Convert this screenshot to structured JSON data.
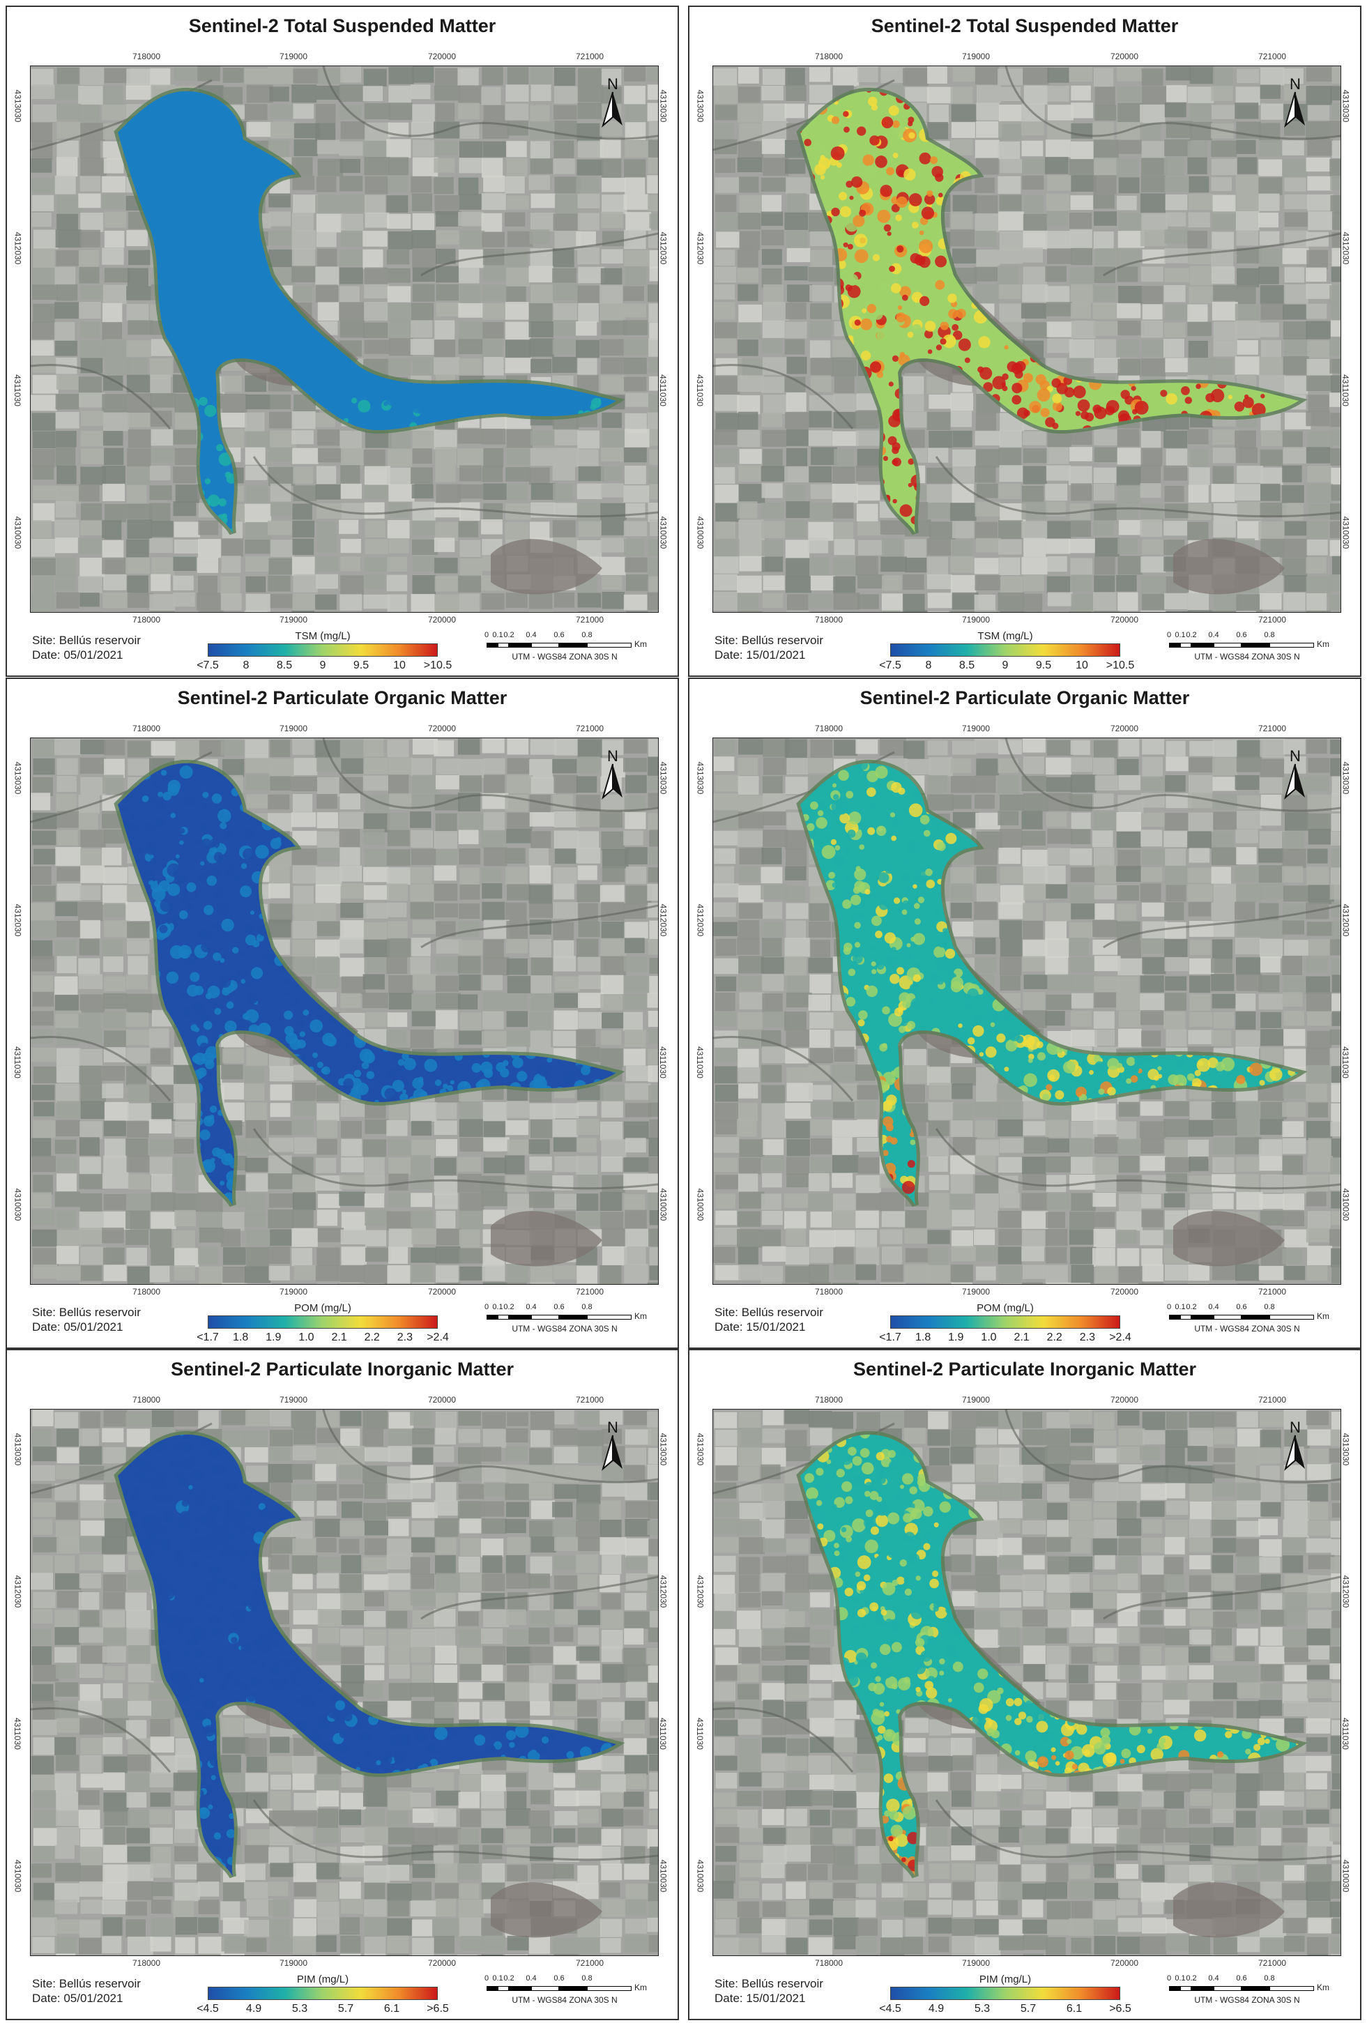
{
  "panels": [
    {
      "title": "Sentinel-2 Total Suspended Matter",
      "site": "Site: Bellús reservoir",
      "date": "Date: 05/01/2021",
      "legend_title": "TSM (mg/L)",
      "legend_ticks": [
        "<7.5",
        "8",
        "8.5",
        "9",
        "9.5",
        "10",
        ">10.5"
      ],
      "level": 0.15
    },
    {
      "title": "Sentinel-2 Total Suspended Matter",
      "site": "Site: Bellús reservoir",
      "date": "Date: 15/01/2021",
      "legend_title": "TSM (mg/L)",
      "legend_ticks": [
        "<7.5",
        "8",
        "8.5",
        "9",
        "9.5",
        "10",
        ">10.5"
      ],
      "level": 0.82
    },
    {
      "title": "Sentinel-2 Particulate Organic Matter",
      "site": "Site: Bellús reservoir",
      "date": "Date: 05/01/2021",
      "legend_title": "POM (mg/L)",
      "legend_ticks": [
        "<1.7",
        "1.8",
        "1.9",
        "1.0",
        "2.1",
        "2.2",
        "2.3",
        ">2.4"
      ],
      "level": 0.08
    },
    {
      "title": "Sentinel-2 Particulate Organic Matter",
      "site": "Site: Bellús reservoir",
      "date": "Date: 15/01/2021",
      "legend_title": "POM (mg/L)",
      "legend_ticks": [
        "<1.7",
        "1.8",
        "1.9",
        "1.0",
        "2.1",
        "2.2",
        "2.3",
        ">2.4"
      ],
      "level": 0.45
    },
    {
      "title": "Sentinel-2 Particulate Inorganic Matter",
      "site": "Site: Bellús reservoir",
      "date": "Date: 05/01/2021",
      "legend_title": "PIM (mg/L)",
      "legend_ticks": [
        "<4.5",
        "4.9",
        "5.3",
        "5.7",
        "6.1",
        ">6.5"
      ],
      "level": 0.06
    },
    {
      "title": "Sentinel-2 Particulate Inorganic Matter",
      "site": "Site: Bellús reservoir",
      "date": "Date: 15/01/2021",
      "legend_title": "PIM (mg/L)",
      "legend_ticks": [
        "<4.5",
        "4.9",
        "5.3",
        "5.7",
        "6.1",
        ">6.5"
      ],
      "level": 0.45
    }
  ],
  "x_ticks": [
    "718000",
    "719000",
    "720000",
    "721000"
  ],
  "y_ticks": [
    "4313030",
    "4312030",
    "4311030",
    "4310030"
  ],
  "scale_labels": [
    "0",
    "0.1",
    "0.2",
    "0.4",
    "0.6",
    "0.8"
  ],
  "scale_unit": "Km",
  "projection": "UTM - WGS84 ZONA 30S N",
  "north_label": "N",
  "colors": {
    "ramp": [
      "#1f4fa8",
      "#1a7fc2",
      "#1fb0a8",
      "#9fd36a",
      "#f2dc3c",
      "#f08a2a",
      "#cc1a1a"
    ],
    "background_land": "#a4a5a3",
    "frame": "#333333"
  }
}
